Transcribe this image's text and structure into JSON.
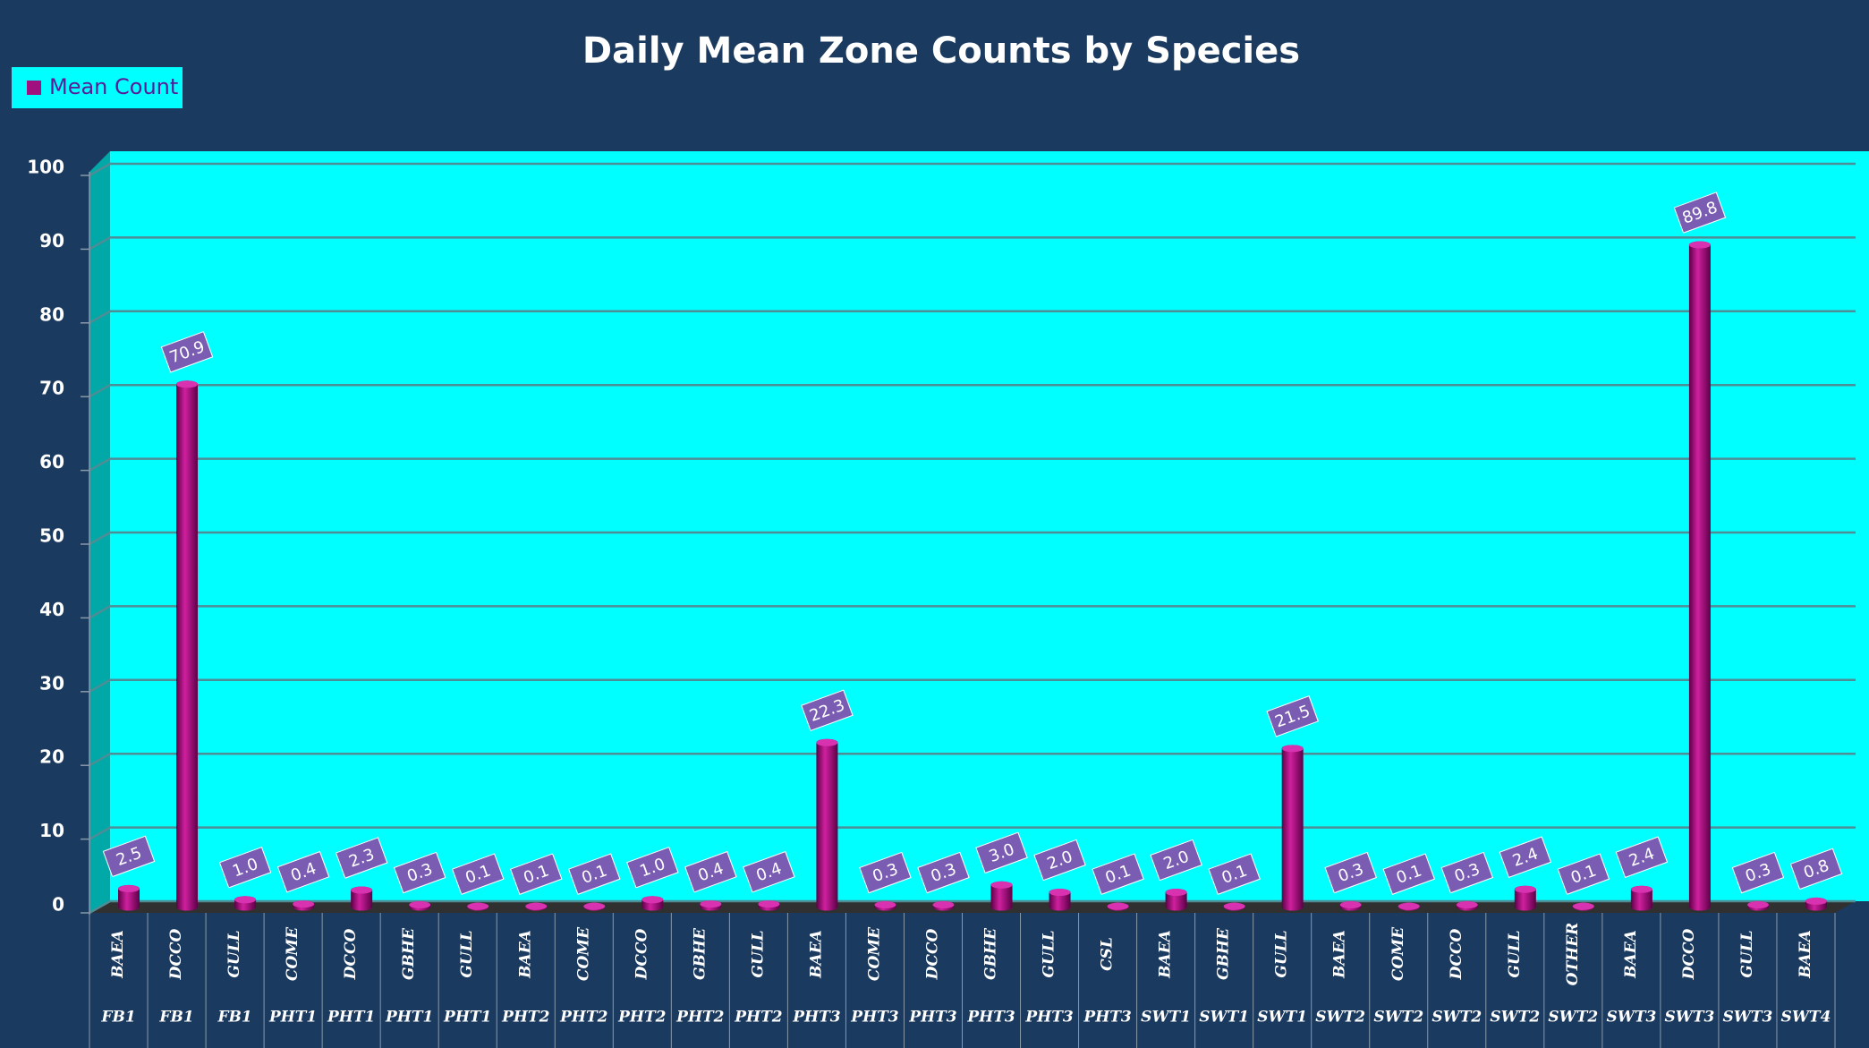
{
  "chart_data": {
    "type": "bar",
    "title": "Daily Mean Zone Counts by Species",
    "categories": [
      "BAEA",
      "DCCO",
      "GULL",
      "COME",
      "DCCO",
      "GBHE",
      "GULL",
      "BAEA",
      "COME",
      "DCCO",
      "GBHE",
      "GULL",
      "BAEA",
      "COME",
      "DCCO",
      "GBHE",
      "GULL",
      "CSL",
      "BAEA",
      "GBHE",
      "GULL",
      "BAEA",
      "COME",
      "DCCO",
      "GULL",
      "OTHER",
      "BAEA",
      "DCCO",
      "GULL",
      "BAEA"
    ],
    "zones": [
      "FB1",
      "FB1",
      "FB1",
      "PHT1",
      "PHT1",
      "PHT1",
      "PHT1",
      "PHT2",
      "PHT2",
      "PHT2",
      "PHT2",
      "PHT2",
      "PHT3",
      "PHT3",
      "PHT3",
      "PHT3",
      "PHT3",
      "PHT3",
      "SWT1",
      "SWT1",
      "SWT1",
      "SWT2",
      "SWT2",
      "SWT2",
      "SWT2",
      "SWT2",
      "SWT3",
      "SWT3",
      "SWT3",
      "SWT4"
    ],
    "series": [
      {
        "name": "Mean Count",
        "color": "#a0107f",
        "values": [
          2.5,
          70.9,
          1.0,
          0.4,
          2.3,
          0.3,
          0.1,
          0.1,
          0.1,
          1.0,
          0.4,
          0.4,
          22.3,
          0.3,
          0.3,
          3.0,
          2.0,
          0.1,
          2.0,
          0.1,
          21.5,
          0.3,
          0.1,
          0.3,
          2.4,
          0.1,
          2.4,
          89.8,
          0.3,
          0.8
        ],
        "value_labels": [
          "2.5",
          "70.9",
          "1.0",
          "0.4",
          "2.3",
          "0.3",
          "0.1",
          "0.1",
          "0.1",
          "1.0",
          "0.4",
          "0.4",
          "22.3",
          "0.3",
          "0.3",
          "3.0",
          "2.0",
          "0.1",
          "2.0",
          "0.1",
          "21.5",
          "0.3",
          "0.1",
          "0.3",
          "2.4",
          "0.1",
          "2.4",
          "89.8",
          "0.3",
          "0.8"
        ]
      }
    ],
    "ylim": [
      0,
      100
    ],
    "yticks": [
      0,
      10,
      20,
      30,
      40,
      50,
      60,
      70,
      80,
      90,
      100
    ],
    "grid": true,
    "legend": "top-left"
  }
}
